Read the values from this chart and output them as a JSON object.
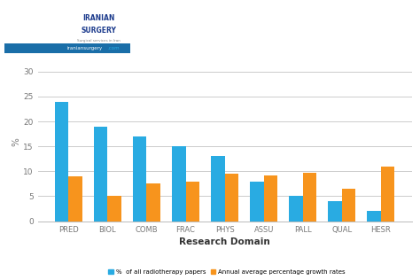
{
  "categories": [
    "PRED",
    "BIOL",
    "COMB",
    "FRAC",
    "PHYS",
    "ASSU",
    "PALL",
    "QUAL",
    "HESR"
  ],
  "blue_values": [
    24,
    19,
    17,
    15,
    13,
    8,
    5,
    4,
    2
  ],
  "orange_values": [
    9,
    5,
    7.5,
    8,
    9.5,
    9.2,
    9.7,
    6.5,
    11
  ],
  "blue_color": "#29ABE2",
  "orange_color": "#F7941D",
  "ylabel": "%",
  "xlabel": "Research Domain",
  "ylim": [
    0,
    32
  ],
  "yticks": [
    0,
    5,
    10,
    15,
    20,
    25,
    30
  ],
  "legend_blue": "%  of all radiotherapy papers",
  "legend_orange": "Annual average percentage growth rates",
  "background_color": "#FFFFFF",
  "header_bg_color": "#1B3A8C",
  "header_url_bg": "#1A6EA8",
  "grid_color": "#CCCCCC",
  "bar_width": 0.35
}
